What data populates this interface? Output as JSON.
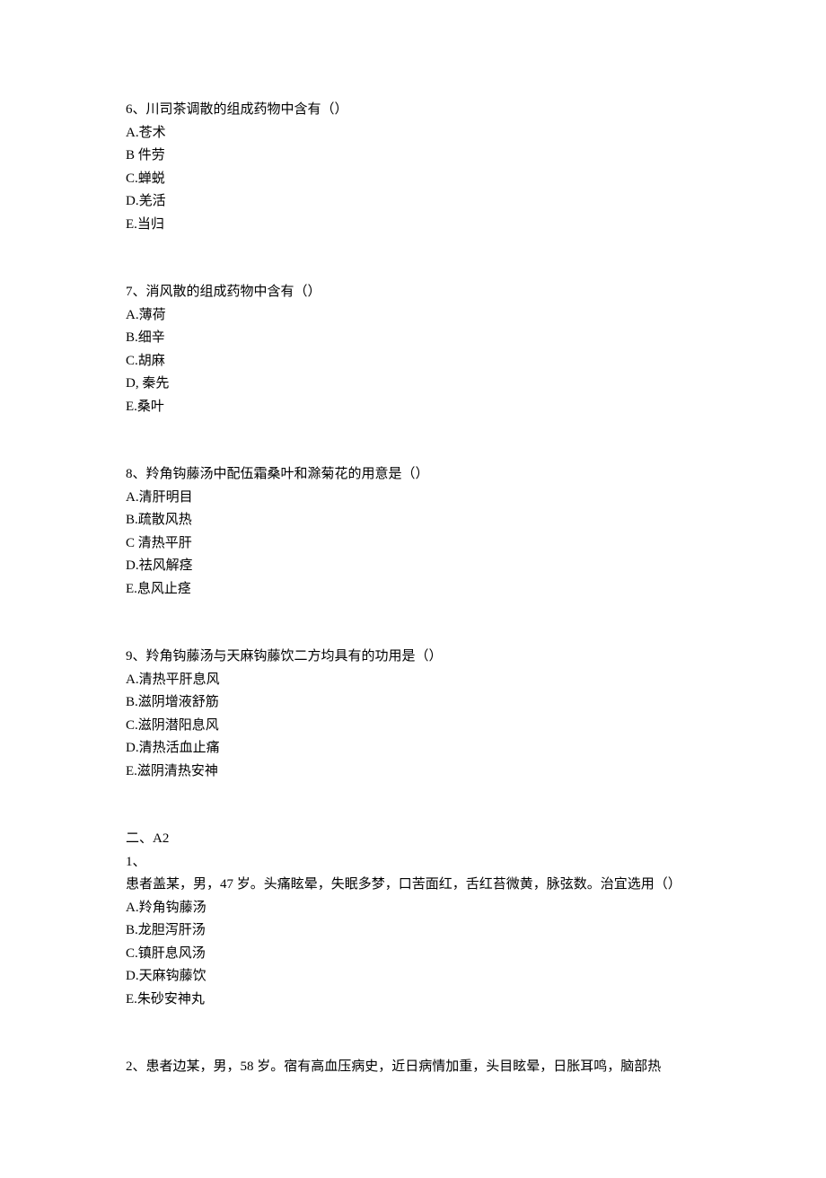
{
  "colors": {
    "background": "#ffffff",
    "text": "#000000"
  },
  "typography": {
    "font_family": "SimSun",
    "font_size_pt": 11,
    "line_height": 1.7
  },
  "questions": [
    {
      "number": "6、",
      "text": "川司茶调散的组成药物中含有（）",
      "options": [
        {
          "label": "A.",
          "text": "苍术"
        },
        {
          "label": "B",
          "text": " 件劳"
        },
        {
          "label": "C.",
          "text": "蝉蜕"
        },
        {
          "label": "D.",
          "text": "羌活"
        },
        {
          "label": "E.",
          "text": "当归"
        }
      ]
    },
    {
      "number": "7、",
      "text": "消风散的组成药物中含有（）",
      "options": [
        {
          "label": "A.",
          "text": "薄荷"
        },
        {
          "label": "B.",
          "text": "细辛"
        },
        {
          "label": "C.",
          "text": "胡麻"
        },
        {
          "label": "D,",
          "text": " 秦先"
        },
        {
          "label": "E.",
          "text": "桑叶"
        }
      ]
    },
    {
      "number": "8、",
      "text": "羚角钩藤汤中配伍霜桑叶和滁菊花的用意是（）",
      "options": [
        {
          "label": "A.",
          "text": "清肝明目"
        },
        {
          "label": "B.",
          "text": "疏散风热"
        },
        {
          "label": "C",
          "text": " 清热平肝"
        },
        {
          "label": "D.",
          "text": "祛风解痉"
        },
        {
          "label": "E.",
          "text": "息风止痉"
        }
      ]
    },
    {
      "number": "9、",
      "text": "羚角钩藤汤与天麻钩藤饮二方均具有的功用是（）",
      "options": [
        {
          "label": "A.",
          "text": "清热平肝息风"
        },
        {
          "label": "B.",
          "text": "滋阴增液舒筋"
        },
        {
          "label": "C.",
          "text": "滋阴潜阳息风"
        },
        {
          "label": "D.",
          "text": "清热活血止痛"
        },
        {
          "label": "E.",
          "text": "滋阴清热安神"
        }
      ]
    }
  ],
  "section2": {
    "heading": "二、A2",
    "questions": [
      {
        "number": "1、",
        "text": "患者盖某，男，47 岁。头痛眩晕，失眠多梦，口苦面红，舌红苔微黄，脉弦数。治宜选用（）",
        "options": [
          {
            "label": "A.",
            "text": "羚角钩藤汤"
          },
          {
            "label": "B.",
            "text": "龙胆泻肝汤"
          },
          {
            "label": "C.",
            "text": "镇肝息风汤"
          },
          {
            "label": "D.",
            "text": "天麻钩藤饮"
          },
          {
            "label": "E.",
            "text": "朱砂安神丸"
          }
        ]
      },
      {
        "number": "2、",
        "text": "患者边某，男，58 岁。宿有高血压病史，近日病情加重，头目眩晕，日胀耳鸣，脑部热",
        "options": []
      }
    ]
  }
}
